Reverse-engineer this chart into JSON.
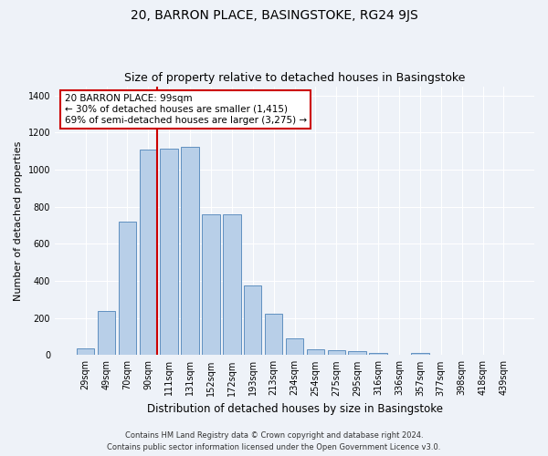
{
  "title": "20, BARRON PLACE, BASINGSTOKE, RG24 9JS",
  "subtitle": "Size of property relative to detached houses in Basingstoke",
  "xlabel": "Distribution of detached houses by size in Basingstoke",
  "ylabel": "Number of detached properties",
  "footnote1": "Contains HM Land Registry data © Crown copyright and database right 2024.",
  "footnote2": "Contains public sector information licensed under the Open Government Licence v3.0.",
  "categories": [
    "29sqm",
    "49sqm",
    "70sqm",
    "90sqm",
    "111sqm",
    "131sqm",
    "152sqm",
    "172sqm",
    "193sqm",
    "213sqm",
    "234sqm",
    "254sqm",
    "275sqm",
    "295sqm",
    "316sqm",
    "336sqm",
    "357sqm",
    "377sqm",
    "398sqm",
    "418sqm",
    "439sqm"
  ],
  "values": [
    35,
    237,
    720,
    1110,
    1115,
    1125,
    760,
    760,
    375,
    225,
    90,
    33,
    27,
    20,
    10,
    0,
    10,
    0,
    0,
    0,
    0
  ],
  "bar_color": "#b8cfe8",
  "bar_edge_color": "#6090c0",
  "annotation_text_line1": "20 BARRON PLACE: 99sqm",
  "annotation_text_line2": "← 30% of detached houses are smaller (1,415)",
  "annotation_text_line3": "69% of semi-detached houses are larger (3,275) →",
  "annotation_box_color": "#ffffff",
  "annotation_border_color": "#cc0000",
  "vline_color": "#cc0000",
  "vline_x": 3.42,
  "ylim": [
    0,
    1450
  ],
  "background_color": "#eef2f8",
  "grid_color": "#ffffff",
  "title_fontsize": 10,
  "subtitle_fontsize": 9,
  "xlabel_fontsize": 8.5,
  "ylabel_fontsize": 8,
  "tick_fontsize": 7,
  "footnote_fontsize": 6,
  "annot_fontsize": 7.5
}
